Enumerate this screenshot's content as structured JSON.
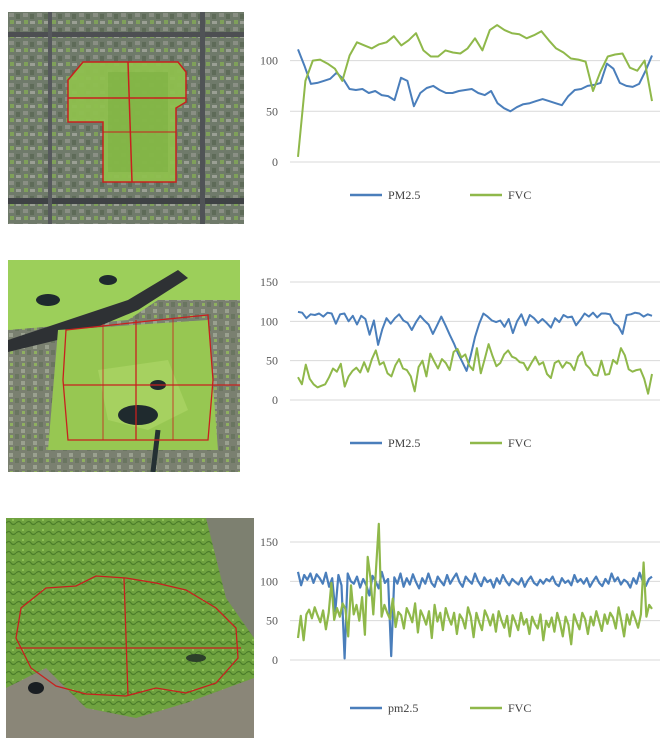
{
  "colors": {
    "pm": "#4a7ebb",
    "fvc": "#8fb84a",
    "boundary": "#c8201e",
    "grid": "#d9d9d9"
  },
  "panels": [
    {
      "image_name": "satellite-map-urban-park"
    },
    {
      "image_name": "satellite-map-lake-park"
    },
    {
      "image_name": "satellite-map-forest-mountain"
    }
  ],
  "chart_data": [
    {
      "type": "line",
      "ylim": [
        0,
        140
      ],
      "yticks": [
        "0",
        "50",
        "100"
      ],
      "series": [
        {
          "name": "PM2.5",
          "color": "#4a7ebb",
          "values": [
            111,
            95,
            77,
            78,
            80,
            82,
            88,
            82,
            72,
            71,
            72,
            68,
            70,
            66,
            65,
            61,
            83,
            80,
            55,
            68,
            73,
            75,
            71,
            68,
            68,
            70,
            71,
            72,
            68,
            66,
            70,
            58,
            53,
            50,
            54,
            57,
            58,
            60,
            62,
            60,
            58,
            56,
            65,
            71,
            72,
            75,
            76,
            78,
            97,
            92,
            78,
            75,
            74,
            77,
            90,
            105
          ]
        },
        {
          "name": "FVC",
          "color": "#8fb84a",
          "values": [
            5,
            80,
            100,
            101,
            97,
            92,
            80,
            105,
            118,
            115,
            112,
            116,
            118,
            124,
            115,
            120,
            127,
            110,
            104,
            104,
            110,
            108,
            107,
            112,
            122,
            110,
            130,
            135,
            130,
            127,
            126,
            122,
            125,
            129,
            120,
            112,
            108,
            102,
            101,
            99,
            70,
            89,
            104,
            106,
            107,
            93,
            90,
            100,
            60
          ]
        }
      ],
      "legend_position": "bottom"
    },
    {
      "type": "line",
      "ylim": [
        0,
        150
      ],
      "yticks": [
        "0",
        "50",
        "100",
        "150"
      ],
      "series": [
        {
          "name": "PM2.5",
          "color": "#4a7ebb",
          "values": [
            112,
            111,
            104,
            109,
            108,
            110,
            106,
            111,
            110,
            97,
            109,
            110,
            100,
            107,
            96,
            107,
            103,
            83,
            101,
            70,
            90,
            104,
            97,
            104,
            109,
            101,
            98,
            89,
            99,
            107,
            101,
            96,
            84,
            95,
            106,
            95,
            83,
            72,
            59,
            48,
            37,
            57,
            80,
            97,
            110,
            106,
            101,
            99,
            101,
            93,
            103,
            85,
            100,
            109,
            95,
            108,
            104,
            98,
            103,
            98,
            92,
            104,
            99,
            108,
            105,
            106,
            95,
            102,
            110,
            106,
            111,
            105,
            110,
            110,
            109,
            98,
            94,
            84,
            108,
            109,
            111,
            110,
            106,
            109,
            107
          ]
        },
        {
          "name": "FVC",
          "color": "#8fb84a",
          "values": [
            29,
            20,
            45,
            27,
            20,
            16,
            18,
            20,
            29,
            40,
            36,
            46,
            17,
            30,
            37,
            41,
            35,
            48,
            36,
            52,
            63,
            45,
            48,
            34,
            30,
            44,
            52,
            40,
            38,
            30,
            11,
            42,
            50,
            30,
            59,
            49,
            40,
            52,
            47,
            38,
            61,
            65,
            54,
            58,
            44,
            38,
            66,
            34,
            52,
            71,
            56,
            43,
            47,
            58,
            63,
            55,
            53,
            48,
            47,
            38,
            47,
            55,
            45,
            48,
            33,
            28,
            47,
            50,
            41,
            48,
            46,
            38,
            55,
            61,
            45,
            40,
            32,
            31,
            50,
            32,
            33,
            51,
            46,
            66,
            57,
            39,
            36,
            38,
            39,
            27,
            8,
            33
          ]
        }
      ],
      "legend_position": "bottom"
    },
    {
      "type": "line",
      "ylim": [
        0,
        150
      ],
      "yticks": [
        "0",
        "50",
        "100",
        "150"
      ],
      "series": [
        {
          "name": "pm2.5",
          "color": "#4a7ebb",
          "values": [
            112,
            95,
            108,
            102,
            110,
            98,
            109,
            104,
            97,
            111,
            93,
            104,
            62,
            108,
            95,
            2,
            110,
            100,
            97,
            106,
            92,
            103,
            95,
            82,
            107,
            100,
            91,
            112,
            98,
            103,
            5,
            105,
            97,
            110,
            93,
            104,
            96,
            109,
            99,
            91,
            104,
            97,
            110,
            98,
            93,
            106,
            100,
            95,
            108,
            97,
            104,
            110,
            99,
            93,
            106,
            101,
            97,
            110,
            100,
            94,
            105,
            99,
            102,
            92,
            104,
            97,
            108,
            100,
            95,
            103,
            99,
            96,
            104,
            93,
            101,
            106,
            98,
            95,
            102,
            97,
            103,
            100,
            106,
            97,
            94,
            104,
            98,
            101,
            95,
            108,
            99,
            103,
            97,
            104,
            93,
            100,
            106,
            98,
            94,
            103,
            97,
            110,
            100,
            105,
            96,
            102,
            99,
            92,
            104,
            97,
            111,
            100,
            94,
            103,
            106
          ]
        },
        {
          "name": "FVC",
          "color": "#8fb84a",
          "values": [
            28,
            56,
            25,
            58,
            64,
            53,
            67,
            57,
            48,
            63,
            39,
            60,
            98,
            51,
            66,
            55,
            72,
            65,
            30,
            95,
            58,
            70,
            50,
            80,
            32,
            131,
            104,
            58,
            115,
            173,
            55,
            70,
            60,
            52,
            78,
            42,
            61,
            57,
            40,
            66,
            58,
            48,
            72,
            35,
            63,
            55,
            45,
            62,
            28,
            70,
            49,
            60,
            38,
            66,
            54,
            45,
            60,
            33,
            58,
            52,
            40,
            67,
            55,
            29,
            60,
            48,
            38,
            63,
            55,
            44,
            58,
            36,
            62,
            50,
            41,
            56,
            30,
            57,
            48,
            38,
            60,
            45,
            52,
            33,
            55,
            46,
            40,
            58,
            25,
            50,
            42,
            54,
            36,
            60,
            47,
            30,
            55,
            45,
            20,
            58,
            48,
            39,
            60,
            52,
            33,
            55,
            44,
            62,
            50,
            37,
            58,
            46,
            60,
            54,
            40,
            67,
            50,
            30,
            58,
            45,
            62,
            52,
            41,
            58,
            124,
            55,
            70,
            65
          ]
        }
      ],
      "legend_position": "bottom"
    }
  ]
}
